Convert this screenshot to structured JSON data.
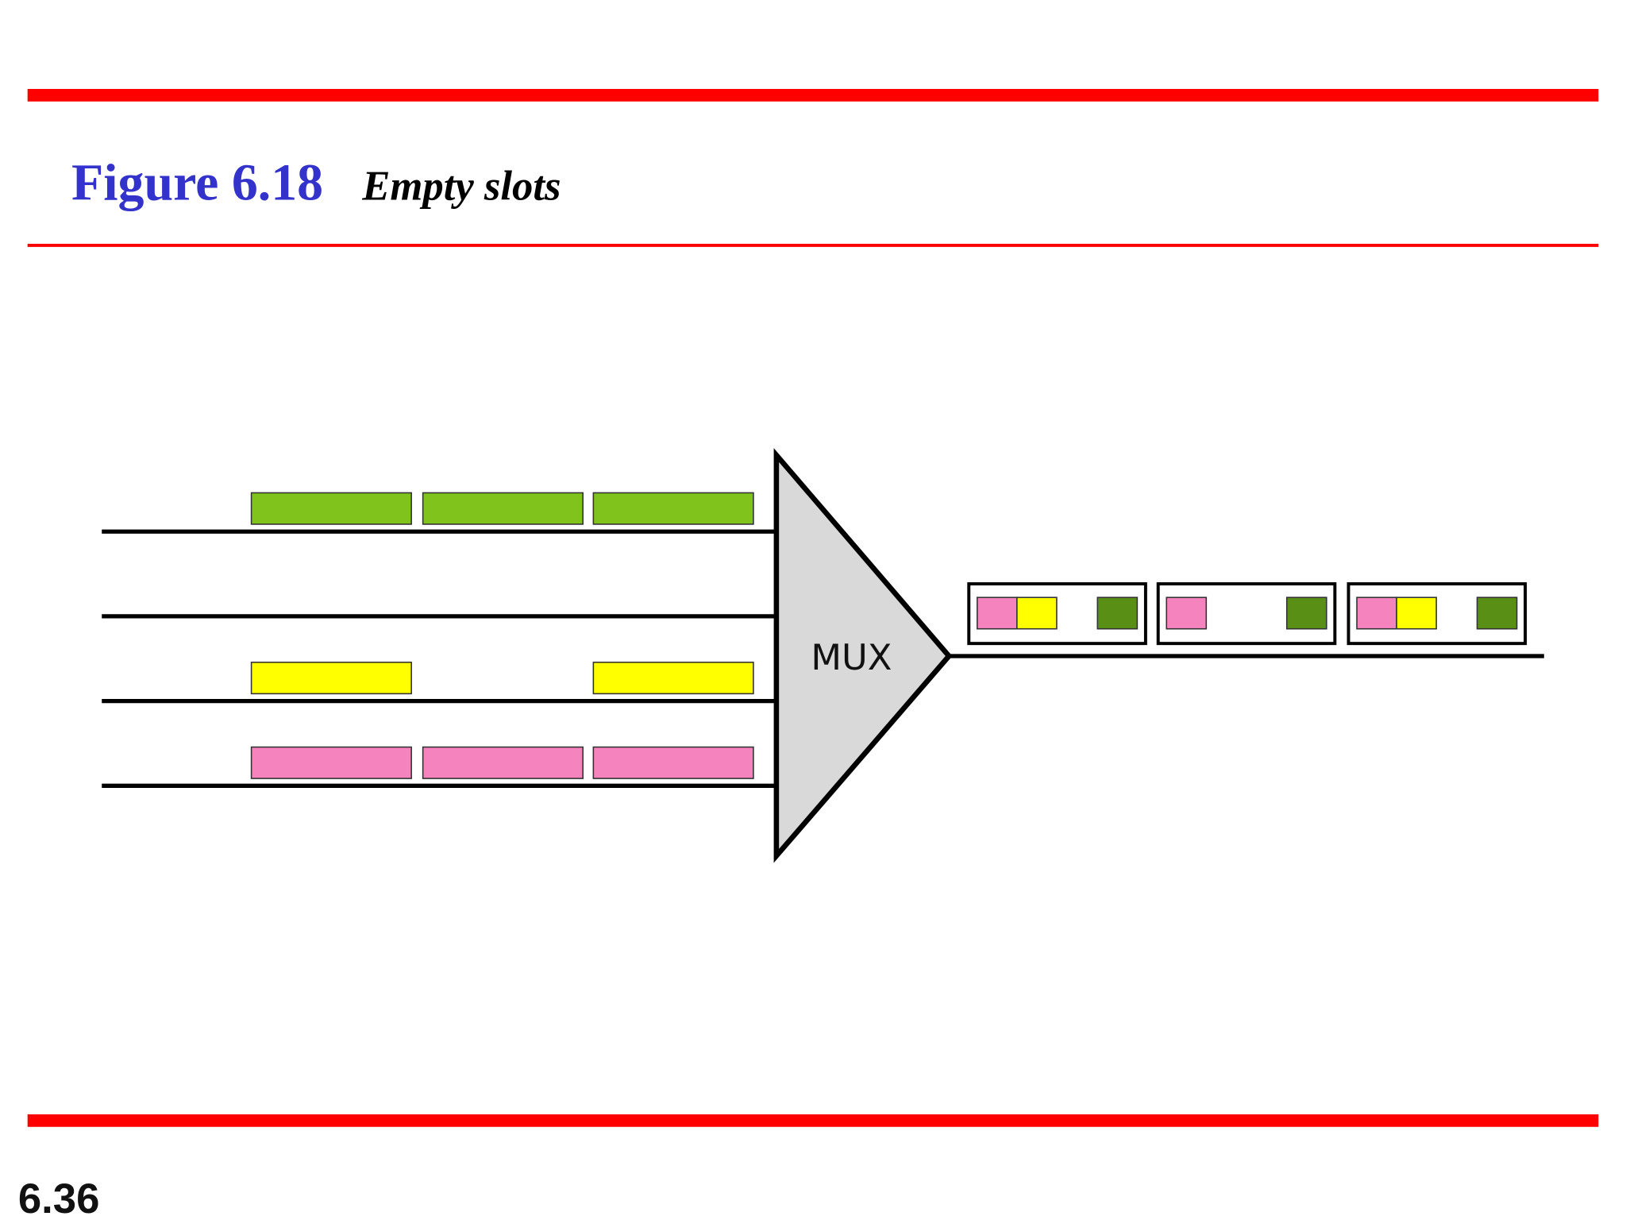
{
  "header": {
    "figure_label": "Figure 6.18",
    "caption": "Empty slots"
  },
  "diagram": {
    "mux_label": "MUX",
    "input_lines": [
      {
        "slots": [
          "green",
          "green",
          "green"
        ]
      },
      {
        "slots": [
          null,
          null,
          null
        ]
      },
      {
        "slots": [
          "yellow",
          null,
          "yellow"
        ]
      },
      {
        "slots": [
          "pink",
          "pink",
          "pink"
        ]
      }
    ],
    "output_frames": [
      {
        "slots": [
          "pink",
          "yellow",
          null,
          "darkgreen"
        ]
      },
      {
        "slots": [
          "pink",
          null,
          null,
          "darkgreen"
        ]
      },
      {
        "slots": [
          "pink",
          "yellow",
          null,
          "darkgreen"
        ]
      }
    ]
  },
  "footer": {
    "page_number": "6.36"
  },
  "colors": {
    "rule": "#ff0000",
    "title": "#3333cc",
    "green": "#7fc31c",
    "darkgreen": "#5a8f15",
    "yellow": "#ffff00",
    "pink": "#f583be",
    "mux_fill": "#d9d9d9"
  }
}
